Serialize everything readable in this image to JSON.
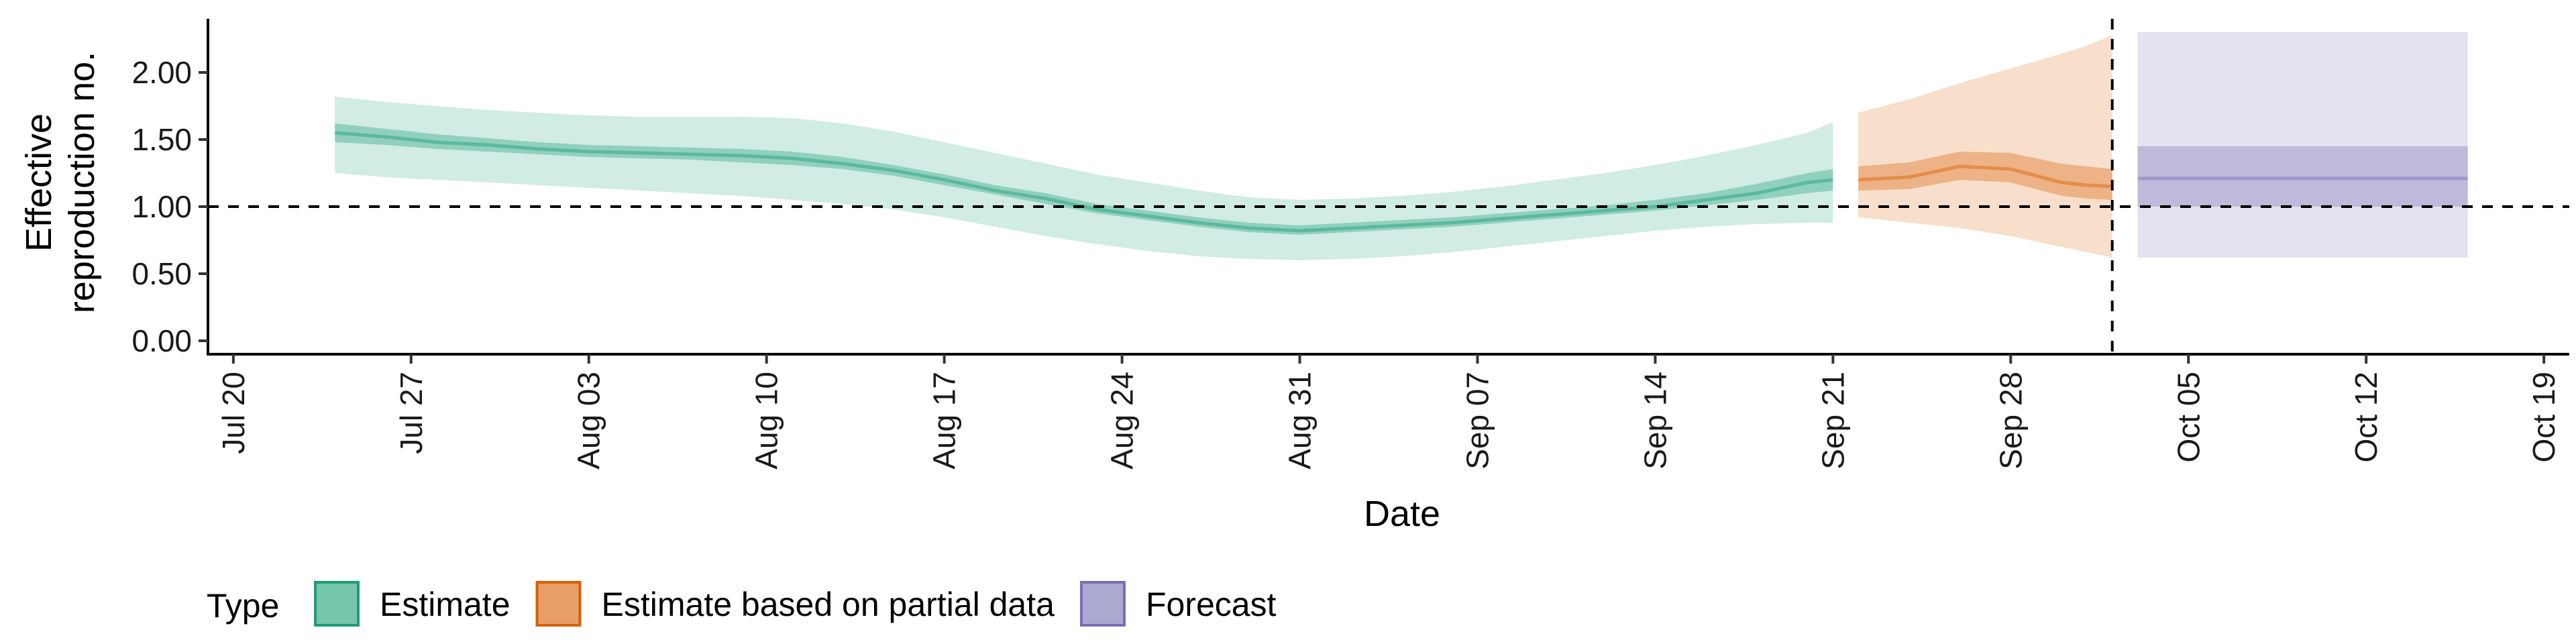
{
  "chart_data": {
    "type": "area",
    "xlabel": "Date",
    "ylabel": [
      "Effective",
      "reproduction no."
    ],
    "ylim": [
      -0.1,
      2.4
    ],
    "y_ticks": [
      0.0,
      0.5,
      1.0,
      1.5,
      2.0
    ],
    "y_tick_labels": [
      "0.00",
      "0.50",
      "1.00",
      "1.50",
      "2.00"
    ],
    "x_ticks": [
      "2020-07-20",
      "2020-07-27",
      "2020-08-03",
      "2020-08-10",
      "2020-08-17",
      "2020-08-24",
      "2020-08-31",
      "2020-09-07",
      "2020-09-14",
      "2020-09-21",
      "2020-09-28",
      "2020-10-05",
      "2020-10-12",
      "2020-10-19"
    ],
    "x_tick_labels": [
      "Jul 20",
      "Jul 27",
      "Aug 03",
      "Aug 10",
      "Aug 17",
      "Aug 24",
      "Aug 31",
      "Sep 07",
      "Sep 14",
      "Sep 21",
      "Sep 28",
      "Oct 05",
      "Oct 12",
      "Oct 19"
    ],
    "xlim": [
      "2020-07-19",
      "2020-10-20"
    ],
    "reference_hline": 1.0,
    "reference_vline": "2020-10-02",
    "grid": false,
    "legend_position": "bottom-left",
    "legend_title": "Type",
    "series": [
      {
        "name": "Estimate",
        "color": "#1b9e77",
        "x": [
          "2020-07-24",
          "2020-07-26",
          "2020-07-28",
          "2020-07-30",
          "2020-08-01",
          "2020-08-03",
          "2020-08-05",
          "2020-08-07",
          "2020-08-09",
          "2020-08-11",
          "2020-08-13",
          "2020-08-15",
          "2020-08-17",
          "2020-08-19",
          "2020-08-21",
          "2020-08-23",
          "2020-08-25",
          "2020-08-27",
          "2020-08-29",
          "2020-08-31",
          "2020-09-02",
          "2020-09-04",
          "2020-09-06",
          "2020-09-08",
          "2020-09-10",
          "2020-09-12",
          "2020-09-14",
          "2020-09-16",
          "2020-09-18",
          "2020-09-20",
          "2020-09-21"
        ],
        "median": [
          1.55,
          1.52,
          1.48,
          1.46,
          1.43,
          1.41,
          1.4,
          1.39,
          1.38,
          1.36,
          1.32,
          1.27,
          1.2,
          1.12,
          1.06,
          0.98,
          0.93,
          0.88,
          0.84,
          0.82,
          0.84,
          0.86,
          0.88,
          0.91,
          0.94,
          0.97,
          1.0,
          1.05,
          1.1,
          1.18,
          1.2
        ],
        "lower_20": [
          1.48,
          1.46,
          1.43,
          1.41,
          1.39,
          1.37,
          1.36,
          1.35,
          1.33,
          1.31,
          1.28,
          1.23,
          1.16,
          1.09,
          1.02,
          0.95,
          0.9,
          0.85,
          0.81,
          0.79,
          0.81,
          0.83,
          0.85,
          0.88,
          0.91,
          0.94,
          0.97,
          1.01,
          1.05,
          1.1,
          1.12
        ],
        "upper_20": [
          1.62,
          1.58,
          1.54,
          1.51,
          1.48,
          1.46,
          1.45,
          1.44,
          1.43,
          1.41,
          1.37,
          1.31,
          1.24,
          1.16,
          1.1,
          1.02,
          0.97,
          0.92,
          0.88,
          0.86,
          0.88,
          0.9,
          0.92,
          0.95,
          0.98,
          1.01,
          1.05,
          1.1,
          1.17,
          1.25,
          1.28
        ],
        "lower_90": [
          1.25,
          1.22,
          1.2,
          1.18,
          1.16,
          1.14,
          1.12,
          1.1,
          1.08,
          1.05,
          1.02,
          0.98,
          0.92,
          0.85,
          0.78,
          0.72,
          0.67,
          0.63,
          0.61,
          0.6,
          0.61,
          0.63,
          0.66,
          0.7,
          0.74,
          0.78,
          0.82,
          0.85,
          0.87,
          0.88,
          0.88
        ],
        "upper_90": [
          1.82,
          1.78,
          1.75,
          1.72,
          1.7,
          1.68,
          1.67,
          1.67,
          1.67,
          1.66,
          1.62,
          1.56,
          1.48,
          1.4,
          1.32,
          1.24,
          1.18,
          1.12,
          1.07,
          1.05,
          1.06,
          1.08,
          1.11,
          1.15,
          1.2,
          1.25,
          1.31,
          1.38,
          1.46,
          1.55,
          1.63
        ]
      },
      {
        "name": "Estimate based on partial data",
        "color": "#d95f02",
        "x": [
          "2020-09-22",
          "2020-09-24",
          "2020-09-26",
          "2020-09-28",
          "2020-09-30",
          "2020-10-01",
          "2020-10-02"
        ],
        "median": [
          1.2,
          1.22,
          1.3,
          1.28,
          1.18,
          1.16,
          1.15
        ],
        "lower_20": [
          1.12,
          1.13,
          1.2,
          1.18,
          1.08,
          1.06,
          1.05
        ],
        "upper_20": [
          1.3,
          1.33,
          1.41,
          1.4,
          1.32,
          1.3,
          1.28
        ],
        "lower_90": [
          0.92,
          0.88,
          0.84,
          0.78,
          0.7,
          0.66,
          0.62
        ],
        "upper_90": [
          1.7,
          1.8,
          1.92,
          2.03,
          2.14,
          2.2,
          2.28
        ]
      },
      {
        "name": "Forecast",
        "color": "#7570b3",
        "x": [
          "2020-10-03",
          "2020-10-16"
        ],
        "median": [
          1.21,
          1.21
        ],
        "lower_20": [
          1.0,
          1.0
        ],
        "upper_20": [
          1.45,
          1.45
        ],
        "lower_90": [
          0.62,
          0.62
        ],
        "upper_90": [
          2.3,
          2.3
        ]
      }
    ]
  }
}
